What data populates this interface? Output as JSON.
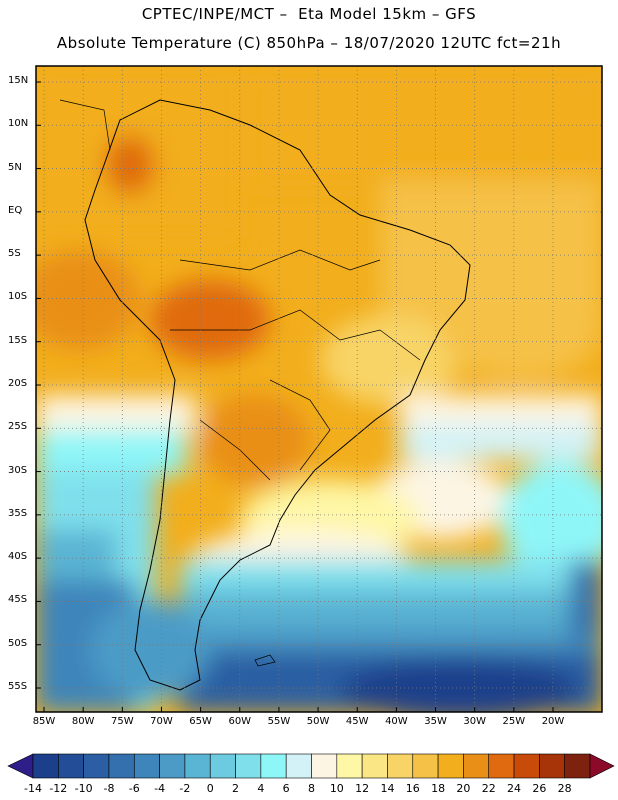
{
  "header": {
    "line1": "CPTEC/INPE/MCT –  Eta Model 15km – GFS",
    "line2": "Absolute Temperature (C) 850hPa – 18/07/2020 12UTC fct=21h"
  },
  "map": {
    "lat_labels": [
      "15N",
      "10N",
      "5N",
      "EQ",
      "5S",
      "10S",
      "15S",
      "20S",
      "25S",
      "30S",
      "35S",
      "40S",
      "45S",
      "50S",
      "55S"
    ],
    "lon_labels": [
      "85W",
      "80W",
      "75W",
      "70W",
      "65W",
      "60W",
      "55W",
      "50W",
      "45W",
      "40W",
      "35W",
      "30W",
      "25W",
      "20W"
    ],
    "lat_values": [
      15,
      10,
      5,
      0,
      -5,
      -10,
      -15,
      -20,
      -25,
      -30,
      -35,
      -40,
      -45,
      -50,
      -55
    ],
    "lon_values": [
      -85,
      -80,
      -75,
      -70,
      -65,
      -60,
      -55,
      -50,
      -45,
      -40,
      -35,
      -30,
      -25,
      -20
    ],
    "grid": "dotted"
  },
  "colorbar": {
    "labels": [
      "-14",
      "-12",
      "-10",
      "-8",
      "-6",
      "-4",
      "-2",
      "0",
      "2",
      "4",
      "6",
      "8",
      "10",
      "12",
      "14",
      "16",
      "18",
      "20",
      "22",
      "24",
      "26",
      "28"
    ],
    "colors": [
      "#1b3f8b",
      "#234e97",
      "#2b5ea3",
      "#3470ae",
      "#3d85bb",
      "#4c9bc7",
      "#5ab4d3",
      "#6ccbe0",
      "#7fe0ec",
      "#8ff6f8",
      "#d2f2f7",
      "#fdf5e4",
      "#fef7a6",
      "#fbe685",
      "#f8d466",
      "#f5c146",
      "#f2ae1c",
      "#e98f18",
      "#e06a10",
      "#c84b0a",
      "#a63408",
      "#7e2210"
    ],
    "arrow_left": "#2e1e8a",
    "arrow_right": "#8b0a2a"
  }
}
